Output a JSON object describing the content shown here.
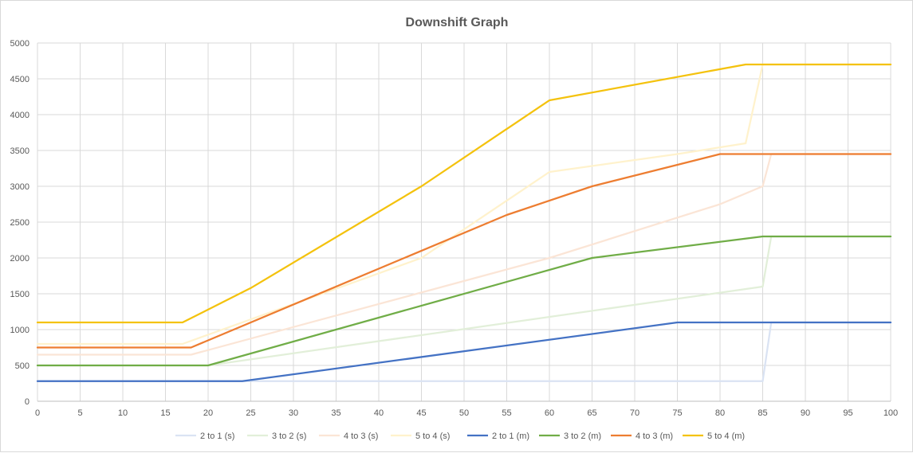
{
  "chart_data": {
    "type": "line",
    "title": "Downshift Graph",
    "xlabel": "",
    "ylabel": "",
    "xlim": [
      0,
      100
    ],
    "ylim": [
      0,
      5000
    ],
    "x_ticks": [
      0,
      5,
      10,
      15,
      20,
      25,
      30,
      35,
      40,
      45,
      50,
      55,
      60,
      65,
      70,
      75,
      80,
      85,
      90,
      95,
      100
    ],
    "y_ticks": [
      0,
      500,
      1000,
      1500,
      2000,
      2500,
      3000,
      3500,
      4000,
      4500,
      5000
    ],
    "grid": true,
    "legend_position": "bottom",
    "series": [
      {
        "name": "2 to 1 (s)",
        "color": "#dae3f3",
        "points": [
          [
            0,
            280
          ],
          [
            85,
            280
          ],
          [
            86,
            1100
          ],
          [
            100,
            1100
          ]
        ]
      },
      {
        "name": "3 to 2 (s)",
        "color": "#e2efd9",
        "points": [
          [
            0,
            500
          ],
          [
            20,
            500
          ],
          [
            85,
            1600
          ],
          [
            86,
            2300
          ],
          [
            100,
            2300
          ]
        ]
      },
      {
        "name": "4 to 3 (s)",
        "color": "#fbe5d6",
        "points": [
          [
            0,
            650
          ],
          [
            18,
            650
          ],
          [
            60,
            2000
          ],
          [
            80,
            2750
          ],
          [
            85,
            3000
          ],
          [
            86,
            3450
          ],
          [
            100,
            3450
          ]
        ]
      },
      {
        "name": "5 to 4 (s)",
        "color": "#fff2cc",
        "points": [
          [
            0,
            800
          ],
          [
            17,
            800
          ],
          [
            45,
            2000
          ],
          [
            60,
            3200
          ],
          [
            75,
            3450
          ],
          [
            83,
            3600
          ],
          [
            85,
            4700
          ],
          [
            100,
            4700
          ]
        ]
      },
      {
        "name": "2 to 1 (m)",
        "color": "#4472c4",
        "points": [
          [
            0,
            280
          ],
          [
            24,
            280
          ],
          [
            75,
            1100
          ],
          [
            100,
            1100
          ]
        ]
      },
      {
        "name": "3 to 2 (m)",
        "color": "#70ad47",
        "points": [
          [
            0,
            500
          ],
          [
            20,
            500
          ],
          [
            65,
            2000
          ],
          [
            85,
            2300
          ],
          [
            100,
            2300
          ]
        ]
      },
      {
        "name": "4 to 3 (m)",
        "color": "#ed7d31",
        "points": [
          [
            0,
            750
          ],
          [
            18,
            750
          ],
          [
            55,
            2600
          ],
          [
            65,
            3000
          ],
          [
            80,
            3450
          ],
          [
            100,
            3450
          ]
        ]
      },
      {
        "name": "5 to 4 (m)",
        "color": "#f4c20d",
        "points": [
          [
            0,
            1100
          ],
          [
            17,
            1100
          ],
          [
            25,
            1580
          ],
          [
            45,
            3000
          ],
          [
            60,
            4200
          ],
          [
            83,
            4700
          ],
          [
            100,
            4700
          ]
        ]
      }
    ]
  }
}
